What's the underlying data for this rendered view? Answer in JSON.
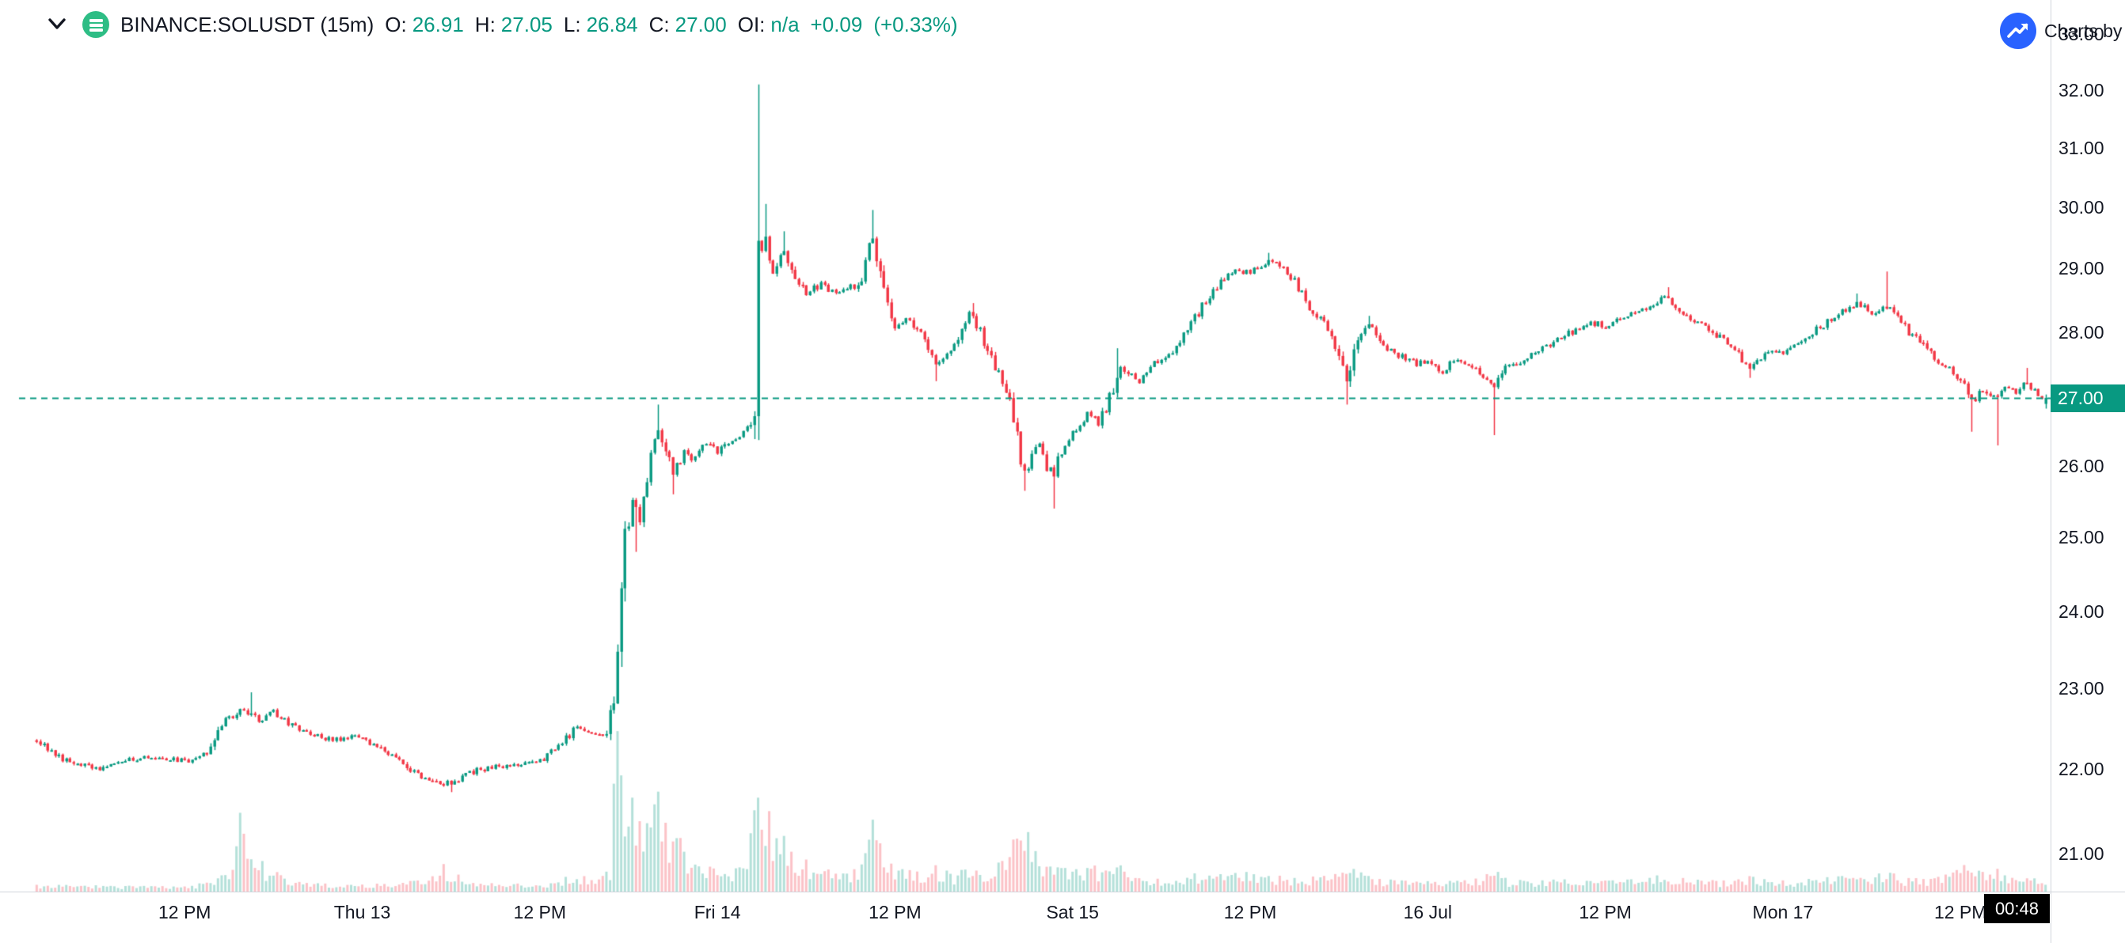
{
  "header": {
    "symbol_title": "BINANCE:SOLUSDT (15m)",
    "ohlc": {
      "o_label": "O:",
      "o": "26.91",
      "h_label": "H:",
      "h": "27.05",
      "l_label": "L:",
      "l": "26.84",
      "c_label": "C:",
      "c": "27.00",
      "oi_label": "OI:",
      "oi": "n/a",
      "change": "+0.09",
      "change_pct": "(+0.33%)"
    }
  },
  "attribution": {
    "label": "Charts by"
  },
  "countdown": "00:48",
  "colors": {
    "up": "#089981",
    "down": "#f23645",
    "axis_text": "#131722",
    "axis_line": "#d1d4dc",
    "price_line": "#089981",
    "price_badge_bg": "#089981",
    "price_badge_text": "#ffffff",
    "countdown_bg": "#000000",
    "countdown_text": "#ffffff",
    "logo_bg": "#2962ff",
    "symbol_logo_bg": "#2ebd85"
  },
  "chart_data": {
    "type": "candlestick",
    "symbol": "BINANCE:SOLUSDT",
    "interval": "15m",
    "last_price": 27.0,
    "price_line": 27.0,
    "price_line_label": "27.00",
    "last_candle": {
      "o": 26.91,
      "h": 27.05,
      "l": 26.84,
      "c": 27.0
    },
    "y_axis": {
      "scale": "log",
      "min": 20.56,
      "max": 33.63,
      "ticks": [
        "33.00",
        "32.00",
        "31.00",
        "30.00",
        "29.00",
        "28.00",
        "27.00",
        "26.00",
        "25.00",
        "24.00",
        "23.00",
        "22.00",
        "21.00"
      ]
    },
    "x_axis": {
      "labels": [
        {
          "label": "12 PM",
          "i": 40
        },
        {
          "label": "Thu 13",
          "i": 88
        },
        {
          "label": "12 PM",
          "i": 136
        },
        {
          "label": "Fri 14",
          "i": 184
        },
        {
          "label": "12 PM",
          "i": 232
        },
        {
          "label": "Sat 15",
          "i": 280
        },
        {
          "label": "12 PM",
          "i": 328
        },
        {
          "label": "16 Jul",
          "i": 376
        },
        {
          "label": "12 PM",
          "i": 424
        },
        {
          "label": "Mon 17",
          "i": 472
        },
        {
          "label": "12 PM",
          "i": 520
        }
      ]
    },
    "candle_count": 544,
    "seed": 20230717,
    "close_path": [
      [
        0,
        22.35
      ],
      [
        8,
        22.1
      ],
      [
        16,
        22.0
      ],
      [
        28,
        22.15
      ],
      [
        40,
        22.1
      ],
      [
        46,
        22.2
      ],
      [
        50,
        22.55
      ],
      [
        56,
        22.75
      ],
      [
        60,
        22.6
      ],
      [
        64,
        22.7
      ],
      [
        72,
        22.45
      ],
      [
        80,
        22.35
      ],
      [
        88,
        22.4
      ],
      [
        96,
        22.15
      ],
      [
        102,
        21.95
      ],
      [
        110,
        21.8
      ],
      [
        120,
        22.0
      ],
      [
        130,
        22.05
      ],
      [
        136,
        22.1
      ],
      [
        142,
        22.3
      ],
      [
        146,
        22.55
      ],
      [
        150,
        22.45
      ],
      [
        154,
        22.4
      ],
      [
        156,
        22.9
      ],
      [
        158,
        24.2
      ],
      [
        159,
        25.0
      ],
      [
        161,
        25.5
      ],
      [
        163,
        25.2
      ],
      [
        166,
        26.3
      ],
      [
        168,
        26.5
      ],
      [
        170,
        26.2
      ],
      [
        172,
        25.9
      ],
      [
        175,
        26.2
      ],
      [
        178,
        26.1
      ],
      [
        181,
        26.35
      ],
      [
        184,
        26.2
      ],
      [
        188,
        26.4
      ],
      [
        191,
        26.5
      ],
      [
        193,
        26.6
      ],
      [
        194,
        26.8
      ],
      [
        195,
        29.2
      ],
      [
        197,
        29.5
      ],
      [
        199,
        28.9
      ],
      [
        202,
        29.3
      ],
      [
        205,
        28.8
      ],
      [
        208,
        28.6
      ],
      [
        212,
        28.75
      ],
      [
        216,
        28.6
      ],
      [
        220,
        28.7
      ],
      [
        222,
        28.7
      ],
      [
        225,
        29.3
      ],
      [
        226,
        29.5
      ],
      [
        228,
        28.9
      ],
      [
        230,
        28.4
      ],
      [
        232,
        28.1
      ],
      [
        236,
        28.2
      ],
      [
        240,
        27.9
      ],
      [
        243,
        27.5
      ],
      [
        246,
        27.7
      ],
      [
        249,
        27.9
      ],
      [
        252,
        28.3
      ],
      [
        255,
        28.0
      ],
      [
        258,
        27.6
      ],
      [
        261,
        27.2
      ],
      [
        263,
        26.9
      ],
      [
        265,
        26.4
      ],
      [
        267,
        25.9
      ],
      [
        269,
        26.2
      ],
      [
        271,
        26.35
      ],
      [
        273,
        26.0
      ],
      [
        275,
        25.9
      ],
      [
        277,
        26.25
      ],
      [
        280,
        26.45
      ],
      [
        284,
        26.8
      ],
      [
        287,
        26.6
      ],
      [
        290,
        27.0
      ],
      [
        293,
        27.5
      ],
      [
        295,
        27.4
      ],
      [
        298,
        27.2
      ],
      [
        301,
        27.5
      ],
      [
        305,
        27.6
      ],
      [
        308,
        27.8
      ],
      [
        312,
        28.1
      ],
      [
        316,
        28.5
      ],
      [
        320,
        28.8
      ],
      [
        324,
        29.0
      ],
      [
        328,
        28.9
      ],
      [
        332,
        29.1
      ],
      [
        336,
        29.05
      ],
      [
        340,
        28.8
      ],
      [
        344,
        28.4
      ],
      [
        348,
        28.1
      ],
      [
        352,
        27.6
      ],
      [
        354,
        27.2
      ],
      [
        357,
        27.9
      ],
      [
        360,
        28.1
      ],
      [
        363,
        27.9
      ],
      [
        366,
        27.7
      ],
      [
        370,
        27.6
      ],
      [
        373,
        27.5
      ],
      [
        376,
        27.55
      ],
      [
        380,
        27.4
      ],
      [
        384,
        27.6
      ],
      [
        388,
        27.5
      ],
      [
        392,
        27.3
      ],
      [
        394,
        27.2
      ],
      [
        397,
        27.45
      ],
      [
        400,
        27.5
      ],
      [
        404,
        27.65
      ],
      [
        408,
        27.8
      ],
      [
        412,
        27.9
      ],
      [
        416,
        28.05
      ],
      [
        420,
        28.15
      ],
      [
        424,
        28.1
      ],
      [
        428,
        28.2
      ],
      [
        432,
        28.3
      ],
      [
        436,
        28.4
      ],
      [
        440,
        28.55
      ],
      [
        444,
        28.3
      ],
      [
        448,
        28.15
      ],
      [
        452,
        28.05
      ],
      [
        456,
        27.85
      ],
      [
        460,
        27.65
      ],
      [
        463,
        27.45
      ],
      [
        466,
        27.6
      ],
      [
        470,
        27.7
      ],
      [
        472,
        27.65
      ],
      [
        476,
        27.85
      ],
      [
        480,
        28.0
      ],
      [
        484,
        28.15
      ],
      [
        488,
        28.3
      ],
      [
        492,
        28.45
      ],
      [
        496,
        28.3
      ],
      [
        500,
        28.4
      ],
      [
        503,
        28.2
      ],
      [
        506,
        28.0
      ],
      [
        510,
        27.8
      ],
      [
        514,
        27.5
      ],
      [
        518,
        27.4
      ],
      [
        521,
        27.2
      ],
      [
        523,
        26.95
      ],
      [
        526,
        27.1
      ],
      [
        529,
        27.0
      ],
      [
        532,
        27.15
      ],
      [
        535,
        27.1
      ],
      [
        538,
        27.25
      ],
      [
        541,
        27.05
      ],
      [
        543,
        27.0
      ]
    ],
    "spikes_high": [
      [
        58,
        22.95
      ],
      [
        168,
        26.9
      ],
      [
        195,
        32.1
      ],
      [
        197,
        30.05
      ],
      [
        202,
        29.6
      ],
      [
        226,
        29.95
      ],
      [
        253,
        28.45
      ],
      [
        292,
        27.75
      ],
      [
        333,
        29.25
      ],
      [
        360,
        28.25
      ],
      [
        441,
        28.7
      ],
      [
        492,
        28.6
      ],
      [
        500,
        28.95
      ],
      [
        538,
        27.45
      ]
    ],
    "spikes_low": [
      [
        112,
        21.72
      ],
      [
        162,
        24.8
      ],
      [
        172,
        25.6
      ],
      [
        243,
        27.25
      ],
      [
        267,
        25.65
      ],
      [
        275,
        25.4
      ],
      [
        354,
        26.9
      ],
      [
        394,
        26.45
      ],
      [
        463,
        27.3
      ],
      [
        523,
        26.5
      ],
      [
        530,
        26.3
      ]
    ],
    "volume_path": [
      [
        0,
        0.03
      ],
      [
        40,
        0.025
      ],
      [
        48,
        0.05
      ],
      [
        52,
        0.1
      ],
      [
        56,
        0.45
      ],
      [
        58,
        0.25
      ],
      [
        62,
        0.12
      ],
      [
        68,
        0.06
      ],
      [
        80,
        0.03
      ],
      [
        100,
        0.04
      ],
      [
        110,
        0.12
      ],
      [
        116,
        0.05
      ],
      [
        136,
        0.03
      ],
      [
        146,
        0.08
      ],
      [
        152,
        0.06
      ],
      [
        155,
        0.1
      ],
      [
        156,
        0.55
      ],
      [
        157,
        0.9
      ],
      [
        158,
        1.0
      ],
      [
        159,
        0.6
      ],
      [
        161,
        0.5
      ],
      [
        163,
        0.45
      ],
      [
        166,
        0.4
      ],
      [
        168,
        0.5
      ],
      [
        170,
        0.3
      ],
      [
        173,
        0.25
      ],
      [
        177,
        0.18
      ],
      [
        181,
        0.15
      ],
      [
        184,
        0.12
      ],
      [
        188,
        0.1
      ],
      [
        192,
        0.12
      ],
      [
        195,
        1.0
      ],
      [
        196,
        0.55
      ],
      [
        197,
        0.4
      ],
      [
        199,
        0.3
      ],
      [
        202,
        0.25
      ],
      [
        205,
        0.18
      ],
      [
        210,
        0.12
      ],
      [
        216,
        0.09
      ],
      [
        222,
        0.1
      ],
      [
        226,
        0.45
      ],
      [
        228,
        0.25
      ],
      [
        231,
        0.15
      ],
      [
        235,
        0.1
      ],
      [
        240,
        0.08
      ],
      [
        243,
        0.12
      ],
      [
        248,
        0.08
      ],
      [
        252,
        0.12
      ],
      [
        256,
        0.08
      ],
      [
        261,
        0.15
      ],
      [
        263,
        0.22
      ],
      [
        265,
        0.28
      ],
      [
        267,
        0.3
      ],
      [
        270,
        0.18
      ],
      [
        273,
        0.15
      ],
      [
        276,
        0.12
      ],
      [
        280,
        0.1
      ],
      [
        285,
        0.12
      ],
      [
        290,
        0.1
      ],
      [
        293,
        0.12
      ],
      [
        298,
        0.07
      ],
      [
        305,
        0.06
      ],
      [
        312,
        0.08
      ],
      [
        318,
        0.08
      ],
      [
        324,
        0.09
      ],
      [
        330,
        0.08
      ],
      [
        335,
        0.07
      ],
      [
        342,
        0.06
      ],
      [
        348,
        0.07
      ],
      [
        352,
        0.1
      ],
      [
        354,
        0.12
      ],
      [
        357,
        0.09
      ],
      [
        362,
        0.06
      ],
      [
        370,
        0.05
      ],
      [
        376,
        0.05
      ],
      [
        384,
        0.05
      ],
      [
        390,
        0.06
      ],
      [
        394,
        0.1
      ],
      [
        398,
        0.05
      ],
      [
        406,
        0.05
      ],
      [
        414,
        0.06
      ],
      [
        420,
        0.05
      ],
      [
        428,
        0.05
      ],
      [
        434,
        0.06
      ],
      [
        440,
        0.08
      ],
      [
        444,
        0.06
      ],
      [
        452,
        0.05
      ],
      [
        458,
        0.05
      ],
      [
        463,
        0.07
      ],
      [
        470,
        0.05
      ],
      [
        476,
        0.05
      ],
      [
        482,
        0.06
      ],
      [
        488,
        0.07
      ],
      [
        494,
        0.06
      ],
      [
        500,
        0.09
      ],
      [
        505,
        0.06
      ],
      [
        510,
        0.06
      ],
      [
        515,
        0.07
      ],
      [
        520,
        0.1
      ],
      [
        522,
        0.16
      ],
      [
        524,
        0.12
      ],
      [
        527,
        0.08
      ],
      [
        530,
        0.1
      ],
      [
        534,
        0.07
      ],
      [
        538,
        0.1
      ],
      [
        541,
        0.07
      ],
      [
        543,
        0.06
      ]
    ],
    "volume_area_frac": 0.18
  }
}
